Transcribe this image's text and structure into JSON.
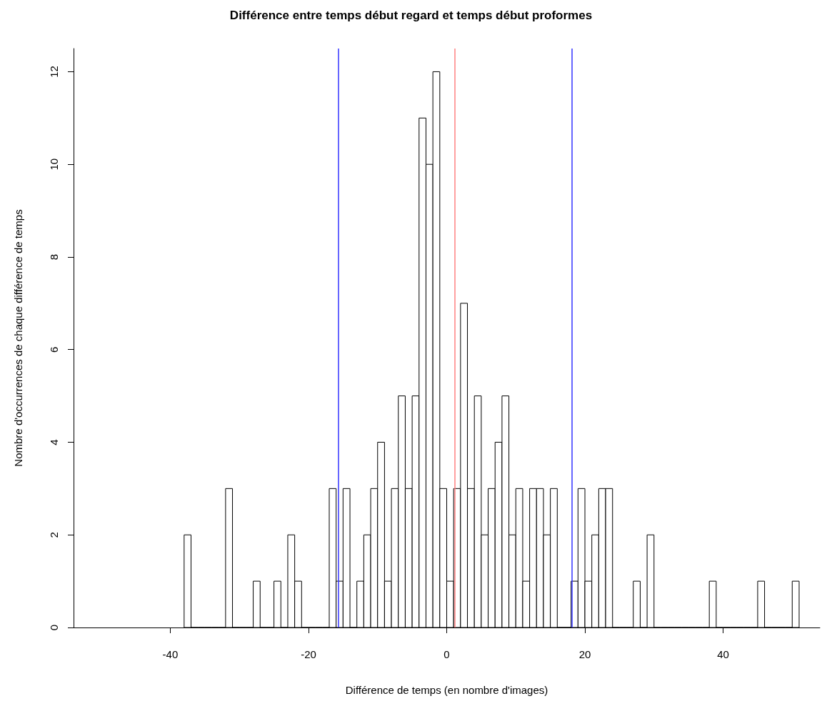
{
  "chart_data": {
    "type": "histogram",
    "title": "Différence entre temps début regard et temps début proformes",
    "xlabel": "Différence de temps (en nombre d'images)",
    "ylabel": "Nombre d'occurrences de chaque différence de temps",
    "bins": [
      -38,
      -37,
      -36,
      -35,
      -34,
      -33,
      -32,
      -31,
      -30,
      -29,
      -28,
      -27,
      -26,
      -25,
      -24,
      -23,
      -22,
      -21,
      -20,
      -19,
      -18,
      -17,
      -16,
      -15,
      -14,
      -13,
      -12,
      -11,
      -10,
      -9,
      -8,
      -7,
      -6,
      -5,
      -4,
      -3,
      -2,
      -1,
      0,
      1,
      2,
      3,
      4,
      5,
      6,
      7,
      8,
      9,
      10,
      11,
      12,
      13,
      14,
      15,
      16,
      17,
      18,
      19,
      20,
      21,
      22,
      23,
      24,
      25,
      26,
      27,
      28,
      29,
      30,
      31,
      32,
      33,
      34,
      35,
      36,
      37,
      38,
      39,
      40,
      41,
      42,
      43,
      44,
      45,
      46,
      47,
      48,
      49,
      50,
      51
    ],
    "values": [
      2,
      0,
      0,
      0,
      0,
      0,
      3,
      0,
      0,
      0,
      1,
      0,
      0,
      1,
      0,
      2,
      1,
      0,
      0,
      0,
      0,
      3,
      1,
      3,
      0,
      1,
      2,
      3,
      4,
      1,
      3,
      5,
      3,
      5,
      11,
      10,
      12,
      3,
      1,
      3,
      7,
      3,
      5,
      2,
      3,
      4,
      5,
      2,
      3,
      1,
      3,
      3,
      2,
      3,
      0,
      0,
      1,
      3,
      1,
      2,
      3,
      3,
      0,
      0,
      0,
      1,
      0,
      2,
      0,
      0,
      0,
      0,
      0,
      0,
      0,
      0,
      1,
      0,
      0,
      0,
      0,
      0,
      0,
      1,
      0,
      0,
      0,
      0,
      1
    ],
    "color": "#ffffff",
    "xlim": [
      -54,
      54
    ],
    "xticks": [
      -40,
      -20,
      0,
      20,
      40
    ],
    "ylim": [
      0,
      12.5
    ],
    "yticks": [
      0,
      2,
      4,
      6,
      8,
      10,
      12
    ],
    "ref_lines": [
      {
        "axis": "x",
        "value": -15.7,
        "color": "#3333ff"
      },
      {
        "axis": "x",
        "value": 1.2,
        "color": "#ff8080"
      },
      {
        "axis": "x",
        "value": 18.1,
        "color": "#3333ff"
      }
    ],
    "grid": false,
    "legend": false
  }
}
